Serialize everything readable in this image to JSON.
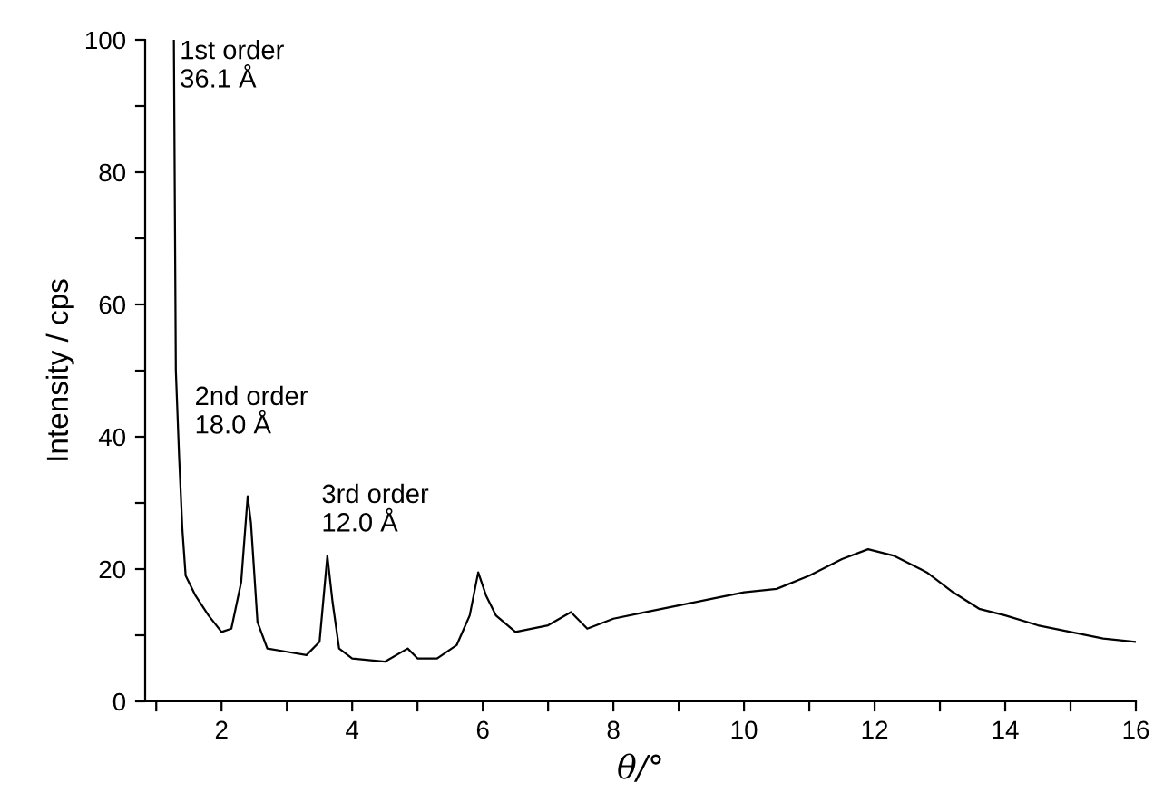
{
  "chart_data": {
    "type": "line",
    "xlabel": "θ/°",
    "ylabel": "Intensity / cps",
    "x": [
      1.27,
      1.3,
      1.35,
      1.4,
      1.45,
      1.6,
      1.8,
      2.0,
      2.15,
      2.3,
      2.4,
      2.45,
      2.55,
      2.7,
      3.0,
      3.3,
      3.5,
      3.62,
      3.7,
      3.8,
      4.0,
      4.5,
      4.85,
      5.0,
      5.3,
      5.6,
      5.8,
      5.93,
      6.05,
      6.2,
      6.5,
      7.0,
      7.35,
      7.6,
      8.0,
      8.5,
      9.0,
      9.5,
      10.0,
      10.5,
      11.0,
      11.5,
      11.9,
      12.3,
      12.8,
      13.2,
      13.6,
      14.0,
      14.5,
      15.0,
      15.5,
      16.0
    ],
    "series": [
      {
        "color": "#000000",
        "values": [
          100,
          50,
          37,
          26,
          19,
          16,
          13,
          10.5,
          11,
          18,
          31,
          27,
          12,
          8,
          7.5,
          7,
          9,
          22,
          15,
          8,
          6.5,
          6,
          8,
          6.5,
          6.5,
          8.5,
          13,
          19.5,
          16,
          13,
          10.5,
          11.5,
          13.5,
          11,
          12.5,
          13.5,
          14.5,
          15.5,
          16.5,
          17,
          19,
          21.5,
          23,
          22,
          19.5,
          16.5,
          14,
          13,
          11.5,
          10.5,
          9.5,
          9
        ]
      }
    ],
    "xlim": [
      0.83,
      16
    ],
    "ylim": [
      0,
      100
    ],
    "xticks": [
      {
        "value": 1,
        "label": null
      },
      2,
      {
        "value": 3,
        "label": null
      },
      4,
      {
        "value": 5,
        "label": null
      },
      6,
      {
        "value": 7,
        "label": null
      },
      8,
      {
        "value": 9,
        "label": null
      },
      10,
      {
        "value": 11,
        "label": null
      },
      12,
      {
        "value": 13,
        "label": null
      },
      14,
      {
        "value": 15,
        "label": null
      },
      16
    ],
    "yticks": [
      0,
      {
        "value": 10,
        "label": null
      },
      20,
      {
        "value": 30,
        "label": null
      },
      40,
      {
        "value": 50,
        "label": null
      },
      60,
      {
        "value": 70,
        "label": null
      },
      80,
      {
        "value": 90,
        "label": null
      },
      100
    ],
    "grid": false,
    "legend": false,
    "annotations": [
      "1st order\n36.1 Å",
      "2nd order\n18.0 Å",
      "3rd order\n12.0 Å"
    ]
  }
}
